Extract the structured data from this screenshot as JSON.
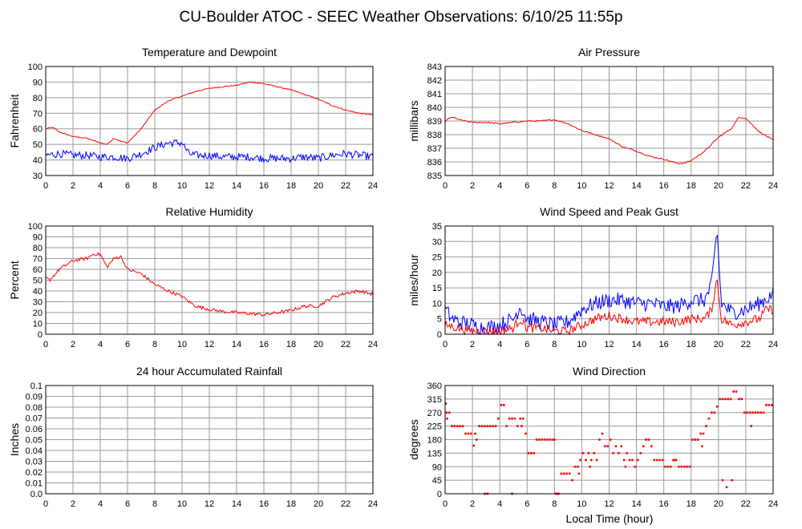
{
  "page": {
    "title": "CU-Boulder ATOC - SEEC Weather Observations: 6/10/25 11:55p",
    "xlabel": "Local Time (hour)"
  },
  "colors": {
    "red": "#ff0000",
    "blue": "#0000ff",
    "grid": "#999999",
    "frame": "#000000"
  },
  "chart_data": [
    {
      "type": "line",
      "title": "Temperature and Dewpoint",
      "ylabel": "Fahrenheit",
      "xlim": [
        0,
        24
      ],
      "ylim": [
        30,
        100
      ],
      "xticks": [
        "0",
        "2",
        "4",
        "6",
        "8",
        "10",
        "12",
        "14",
        "16",
        "18",
        "20",
        "22",
        "24"
      ],
      "yticks": [
        "30",
        "40",
        "50",
        "60",
        "70",
        "80",
        "90",
        "100"
      ],
      "grid": true,
      "series": [
        {
          "color": "#ff0000",
          "noise": 0.3,
          "x": [
            0,
            0.5,
            1,
            2,
            3,
            4,
            4.5,
            5,
            5.5,
            6,
            7,
            8,
            9,
            10,
            11,
            12,
            13,
            14,
            15,
            16,
            17,
            18,
            19,
            20,
            21,
            22,
            23,
            24
          ],
          "y": [
            60,
            61,
            58,
            55,
            54,
            51,
            50,
            54,
            52,
            51,
            60,
            72,
            78,
            81,
            84,
            86,
            87,
            88,
            90,
            89,
            87,
            85,
            82,
            79,
            75,
            72,
            70,
            69
          ]
        },
        {
          "color": "#0000ff",
          "noise": 2.5,
          "x": [
            0,
            1,
            2,
            3,
            4,
            5,
            6,
            7,
            8,
            9,
            10,
            10.5,
            11,
            12,
            13,
            14,
            15,
            16,
            17,
            18,
            19,
            20,
            21,
            22,
            23,
            24
          ],
          "y": [
            43,
            44,
            43,
            43,
            42,
            42,
            41,
            44,
            48,
            51,
            51,
            44,
            43,
            43,
            42,
            42,
            42,
            41,
            41,
            41,
            42,
            41,
            43,
            44,
            43,
            42
          ]
        }
      ]
    },
    {
      "type": "line",
      "title": "Air Pressure",
      "ylabel": "millibars",
      "xlim": [
        0,
        24
      ],
      "ylim": [
        835,
        843
      ],
      "xticks": [
        "0",
        "2",
        "4",
        "6",
        "8",
        "10",
        "12",
        "14",
        "16",
        "18",
        "20",
        "22",
        "24"
      ],
      "yticks": [
        "835",
        "836",
        "837",
        "838",
        "839",
        "840",
        "841",
        "842",
        "843"
      ],
      "grid": true,
      "series": [
        {
          "color": "#ff0000",
          "noise": 0.05,
          "x": [
            0,
            0.5,
            1,
            2,
            3,
            4,
            5,
            6,
            7,
            8,
            9,
            10,
            11,
            12,
            13,
            14,
            15,
            16,
            17,
            17.5,
            18,
            19,
            20,
            21,
            21.5,
            22,
            23,
            24
          ],
          "y": [
            839.0,
            839.3,
            839.1,
            838.9,
            838.9,
            838.8,
            838.9,
            839.0,
            839.0,
            839.1,
            838.8,
            838.3,
            838.0,
            837.7,
            837.1,
            836.8,
            836.4,
            836.2,
            835.9,
            835.9,
            836.1,
            836.8,
            837.8,
            838.5,
            839.3,
            839.2,
            838.2,
            837.6
          ]
        }
      ]
    },
    {
      "type": "line",
      "title": "Relative Humidity",
      "ylabel": "Percent",
      "xlim": [
        0,
        24
      ],
      "ylim": [
        0,
        100
      ],
      "xticks": [
        "0",
        "2",
        "4",
        "6",
        "8",
        "10",
        "12",
        "14",
        "16",
        "18",
        "20",
        "22",
        "24"
      ],
      "yticks": [
        "0",
        "10",
        "20",
        "30",
        "40",
        "50",
        "60",
        "70",
        "80",
        "90",
        "100"
      ],
      "grid": true,
      "series": [
        {
          "color": "#ff0000",
          "noise": 1.5,
          "x": [
            0,
            0.3,
            1,
            2,
            3,
            3.5,
            4,
            4.5,
            5,
            5.5,
            6,
            7,
            8,
            9,
            10,
            10.5,
            11,
            12,
            13,
            14,
            15,
            16,
            17,
            18,
            19,
            20,
            21,
            22,
            23,
            24
          ],
          "y": [
            52,
            50,
            60,
            68,
            70,
            74,
            74,
            62,
            70,
            72,
            60,
            56,
            46,
            40,
            35,
            30,
            26,
            23,
            21,
            20,
            19,
            18,
            20,
            22,
            26,
            26,
            34,
            38,
            40,
            37
          ]
        }
      ]
    },
    {
      "type": "line",
      "title": "Wind Speed and Peak Gust",
      "ylabel": "miles/hour",
      "xlim": [
        0,
        24
      ],
      "ylim": [
        0,
        35
      ],
      "xticks": [
        "0",
        "2",
        "4",
        "6",
        "8",
        "10",
        "12",
        "14",
        "16",
        "18",
        "20",
        "22",
        "24"
      ],
      "yticks": [
        "0",
        "5",
        "10",
        "15",
        "20",
        "25",
        "30",
        "35"
      ],
      "grid": true,
      "series": [
        {
          "color": "#0000ff",
          "noise": 2.5,
          "min": 0,
          "x": [
            0,
            0.5,
            1,
            2,
            3,
            4,
            5,
            5.5,
            6,
            7,
            8,
            9,
            10,
            11,
            12,
            13,
            14,
            15,
            16,
            17,
            18,
            19,
            19.5,
            19.9,
            20.2,
            21,
            22,
            23,
            24
          ],
          "y": [
            8,
            5,
            4,
            3,
            2,
            3,
            5,
            9,
            5,
            4,
            3,
            4,
            8,
            10,
            11,
            11,
            10,
            10,
            9,
            9,
            11,
            11,
            16,
            34,
            10,
            7,
            8,
            10,
            13
          ]
        },
        {
          "color": "#ff0000",
          "noise": 1.5,
          "min": 0,
          "x": [
            0,
            1,
            2,
            3,
            4,
            5,
            5.5,
            6,
            7,
            8,
            9,
            10,
            11,
            12,
            13,
            14,
            15,
            16,
            17,
            18,
            19,
            19.5,
            19.9,
            20.2,
            21,
            22,
            23,
            23.5,
            24
          ],
          "y": [
            3,
            2,
            1,
            1,
            1,
            2,
            5,
            2,
            2,
            1,
            1,
            3,
            5,
            6,
            5,
            4,
            4,
            4,
            4,
            5,
            5,
            8,
            18,
            5,
            3,
            4,
            5,
            8,
            8
          ]
        }
      ]
    },
    {
      "type": "line",
      "title": "24 hour Accumulated Rainfall",
      "ylabel": "Inches",
      "xlim": [
        0,
        24
      ],
      "ylim": [
        0,
        0.1
      ],
      "xticks": [
        "0",
        "2",
        "4",
        "6",
        "8",
        "10",
        "12",
        "14",
        "16",
        "18",
        "20",
        "22",
        "24"
      ],
      "yticks": [
        "0.0",
        "0.01",
        "0.02",
        "0.03",
        "0.04",
        "0.05",
        "0.06",
        "0.07",
        "0.08",
        "0.09",
        "0.1"
      ],
      "grid": true,
      "series": [
        {
          "color": "#ff0000",
          "noise": 0,
          "x": [
            0,
            24
          ],
          "y": [
            0,
            0
          ]
        }
      ]
    },
    {
      "type": "scatter",
      "title": "Wind Direction",
      "ylabel": "degrees",
      "xlabel": "Local Time (hour)",
      "xlim": [
        0,
        24
      ],
      "ylim": [
        0,
        360
      ],
      "xticks": [
        "0",
        "2",
        "4",
        "6",
        "8",
        "10",
        "12",
        "14",
        "16",
        "18",
        "20",
        "22",
        "24"
      ],
      "yticks": [
        "0",
        "45",
        "90",
        "135",
        "180",
        "225",
        "270",
        "315",
        "360"
      ],
      "grid": true,
      "series": [
        {
          "color": "#ff0000",
          "x": [
            0.1,
            0.3,
            0.5,
            0.7,
            0.9,
            1.1,
            1.3,
            1.5,
            1.7,
            1.9,
            2.1,
            2.3,
            2.5,
            2.7,
            2.9,
            3.1,
            3.3,
            3.5,
            3.7,
            3.9,
            4.1,
            4.3,
            4.5,
            4.7,
            4.9,
            5.1,
            5.3,
            5.5,
            5.7,
            5.9,
            6.1,
            6.3,
            6.5,
            6.7,
            6.9,
            7.1,
            7.3,
            7.5,
            7.7,
            7.9,
            8.1,
            8.3,
            8.5,
            8.7,
            8.9,
            9.1,
            9.3,
            9.5,
            9.7,
            9.9,
            10.1,
            10.3,
            10.5,
            10.7,
            10.9,
            11.1,
            11.3,
            11.5,
            11.7,
            11.9,
            12.1,
            12.3,
            12.5,
            12.7,
            12.9,
            13.1,
            13.3,
            13.5,
            13.7,
            13.9,
            14.1,
            14.3,
            14.5,
            14.7,
            14.9,
            15.1,
            15.3,
            15.5,
            15.7,
            15.9,
            16.1,
            16.3,
            16.5,
            16.7,
            16.9,
            17.1,
            17.3,
            17.5,
            17.7,
            17.9,
            18.1,
            18.3,
            18.5,
            18.7,
            18.9,
            19.1,
            19.3,
            19.5,
            19.7,
            19.9,
            20.1,
            20.3,
            20.5,
            20.7,
            20.9,
            21.1,
            21.3,
            21.5,
            21.7,
            21.9,
            22.1,
            22.3,
            22.5,
            22.7,
            22.9,
            23.1,
            23.3,
            23.5,
            23.7,
            23.9,
            2.9,
            3.1,
            4.9,
            20.3,
            20.6,
            21.0,
            8.0,
            8.2,
            2.2,
            5.6,
            9.8,
            10.6,
            13.2,
            16.8,
            18.8,
            0.05,
            0.15,
            22.4
          ],
          "y": [
            270,
            270,
            225,
            225,
            225,
            225,
            225,
            200,
            200,
            200,
            160,
            180,
            225,
            225,
            225,
            225,
            225,
            225,
            225,
            250,
            295,
            295,
            225,
            250,
            250,
            250,
            225,
            250,
            250,
            200,
            135,
            135,
            135,
            180,
            180,
            180,
            180,
            180,
            180,
            180,
            0,
            0,
            67,
            67,
            67,
            67,
            45,
            90,
            90,
            112,
            135,
            112,
            135,
            112,
            135,
            112,
            180,
            200,
            158,
            158,
            180,
            135,
            158,
            135,
            158,
            112,
            135,
            112,
            112,
            90,
            112,
            135,
            158,
            180,
            180,
            158,
            112,
            112,
            112,
            112,
            90,
            90,
            90,
            112,
            112,
            90,
            90,
            90,
            90,
            90,
            180,
            180,
            180,
            200,
            200,
            225,
            250,
            270,
            270,
            290,
            315,
            315,
            315,
            315,
            315,
            340,
            340,
            315,
            315,
            270,
            270,
            270,
            270,
            270,
            270,
            270,
            270,
            295,
            295,
            295,
            0,
            0,
            0,
            45,
            22,
            45,
            180,
            0,
            200,
            225,
            67,
            90,
            90,
            112,
            158,
            300,
            250,
            225
          ]
        }
      ]
    }
  ]
}
